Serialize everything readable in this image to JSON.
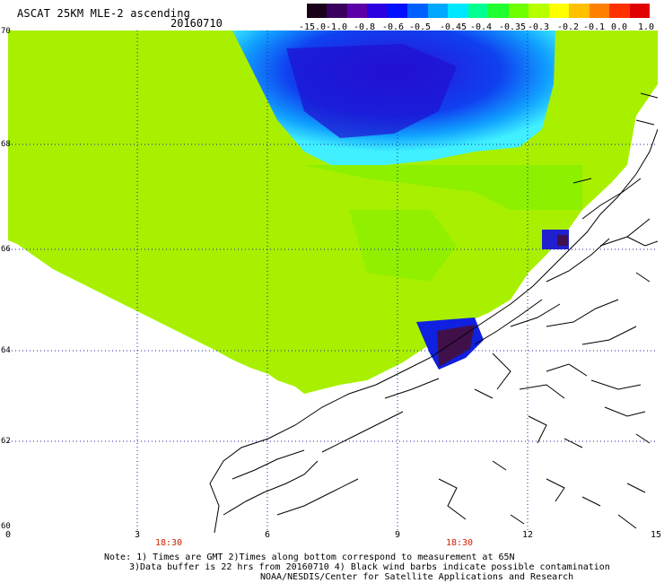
{
  "header": {
    "title": "ASCAT 25KM MLE-2 ascending",
    "date": "20160710"
  },
  "colorbar": {
    "labels": [
      "-15.0",
      "-1.0",
      "-0.8",
      "-0.6",
      "-0.5",
      "-0.45",
      "-0.4",
      "-0.35",
      "-0.3",
      "-0.2",
      "-0.1",
      "0.0",
      "1.0"
    ],
    "colors": [
      "#1a0018",
      "#3a0060",
      "#5a00a8",
      "#2a00e0",
      "#0010ff",
      "#0060ff",
      "#00a8ff",
      "#00e8ff",
      "#00ff90",
      "#20ff30",
      "#70ff00",
      "#b8ff00",
      "#ffff00",
      "#ffc000",
      "#ff8000",
      "#ff3000",
      "#e00000"
    ]
  },
  "map": {
    "y_labels": [
      "70",
      "68",
      "66",
      "64",
      "62",
      "60"
    ],
    "x_labels": [
      "0",
      "3",
      "6",
      "9",
      "12",
      "15"
    ],
    "time_labels": [
      "18:30",
      "18:30"
    ],
    "colors": {
      "field": "#a8f000",
      "blue": "#1030e8",
      "cyan": "#30e8ff",
      "purple": "#40104a",
      "coast": "#000000"
    }
  },
  "notes": {
    "line1": "Note: 1) Times are GMT 2)Times along bottom correspond to measurement at 65N",
    "line2": "3)Data buffer is 22 hrs from 20160710 4) Black wind barbs indicate possible contamination",
    "line3": "NOAA/NESDIS/Center for Satellite Applications and Research"
  }
}
